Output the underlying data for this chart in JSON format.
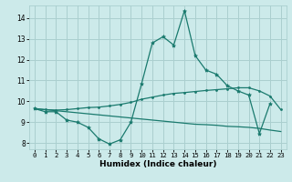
{
  "xlabel": "Humidex (Indice chaleur)",
  "ylabel": "",
  "bg_color": "#cceaea",
  "line_color": "#1a7a6e",
  "grid_color": "#aacfcf",
  "xlim": [
    -0.5,
    23.5
  ],
  "ylim": [
    7.7,
    14.6
  ],
  "yticks": [
    8,
    9,
    10,
    11,
    12,
    13,
    14
  ],
  "xticks": [
    0,
    1,
    2,
    3,
    4,
    5,
    6,
    7,
    8,
    9,
    10,
    11,
    12,
    13,
    14,
    15,
    16,
    17,
    18,
    19,
    20,
    21,
    22,
    23
  ],
  "line1_x": [
    0,
    1,
    2,
    3,
    4,
    5,
    6,
    7,
    8,
    9,
    10,
    11,
    12,
    13,
    14,
    15,
    16,
    17,
    18,
    19,
    20,
    21,
    22
  ],
  "line1_y": [
    9.65,
    9.5,
    9.5,
    9.1,
    9.0,
    8.75,
    8.2,
    7.95,
    8.15,
    9.0,
    10.85,
    12.8,
    13.1,
    12.7,
    14.35,
    12.2,
    11.5,
    11.3,
    10.75,
    10.5,
    10.3,
    8.45,
    9.9
  ],
  "line2_x": [
    0,
    1,
    2,
    3,
    4,
    5,
    6,
    7,
    8,
    9,
    10,
    11,
    12,
    13,
    14,
    15,
    16,
    17,
    18,
    19,
    20,
    21,
    22,
    23
  ],
  "line2_y": [
    9.65,
    9.6,
    9.58,
    9.6,
    9.65,
    9.7,
    9.72,
    9.78,
    9.85,
    9.95,
    10.1,
    10.2,
    10.3,
    10.38,
    10.42,
    10.47,
    10.52,
    10.56,
    10.6,
    10.65,
    10.65,
    10.5,
    10.25,
    9.6
  ],
  "line3_x": [
    0,
    1,
    2,
    3,
    4,
    5,
    6,
    7,
    8,
    9,
    10,
    11,
    12,
    13,
    14,
    15,
    16,
    17,
    18,
    19,
    20,
    21,
    22,
    23
  ],
  "line3_y": [
    9.65,
    9.6,
    9.55,
    9.5,
    9.45,
    9.4,
    9.35,
    9.3,
    9.25,
    9.2,
    9.15,
    9.1,
    9.05,
    9.0,
    8.95,
    8.9,
    8.88,
    8.85,
    8.8,
    8.78,
    8.75,
    8.7,
    8.62,
    8.55
  ]
}
